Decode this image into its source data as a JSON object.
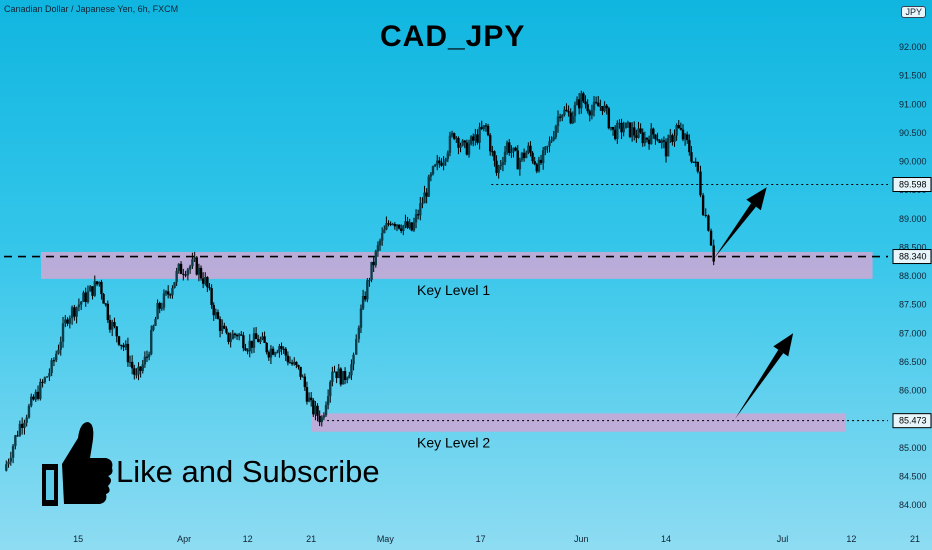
{
  "header": {
    "symbol_info": "Canadian Dollar / Japanese Yen, 6h, FXCM",
    "title": "CAD_JPY",
    "currency_badge": "JPY"
  },
  "cta": {
    "text": "Like and Subscribe"
  },
  "colors": {
    "background_top": "#10b6e0",
    "background_bottom": "#8edcf2",
    "key_level_zone": "#c9a9d6",
    "candles": "#000000",
    "arrows": "#000000"
  },
  "chart_data": {
    "type": "candlestick",
    "title": "CAD_JPY",
    "ylim": [
      84.0,
      92.5
    ],
    "yticks": [
      84.0,
      84.5,
      85.0,
      85.5,
      86.0,
      86.5,
      87.0,
      87.5,
      88.0,
      88.5,
      89.0,
      89.5,
      90.0,
      90.5,
      91.0,
      91.5,
      92.0
    ],
    "ytick_labels": [
      "84.000",
      "84.500",
      "85.000",
      "85.500",
      "86.000",
      "86.500",
      "87.000",
      "87.500",
      "88.000",
      "88.500",
      "89.000",
      "89.500",
      "90.000",
      "90.500",
      "91.000",
      "91.500",
      "92.000"
    ],
    "xticks": [
      {
        "label": "15",
        "t": 14
      },
      {
        "label": "Apr",
        "t": 34
      },
      {
        "label": "12",
        "t": 46
      },
      {
        "label": "21",
        "t": 58
      },
      {
        "label": "May",
        "t": 72
      },
      {
        "label": "17",
        "t": 90
      },
      {
        "label": "Jun",
        "t": 109
      },
      {
        "label": "14",
        "t": 125
      },
      {
        "label": "Jul",
        "t": 147
      },
      {
        "label": "12",
        "t": 160
      },
      {
        "label": "21",
        "t": 172
      }
    ],
    "xlim": [
      0,
      182
    ],
    "price_path": [
      [
        0,
        84.6
      ],
      [
        3,
        85.4
      ],
      [
        6,
        85.9
      ],
      [
        9,
        86.4
      ],
      [
        12,
        87.3
      ],
      [
        15,
        87.6
      ],
      [
        18,
        87.9
      ],
      [
        20,
        87.2
      ],
      [
        23,
        86.7
      ],
      [
        25,
        86.2
      ],
      [
        27,
        86.6
      ],
      [
        29,
        87.4
      ],
      [
        31,
        87.7
      ],
      [
        33,
        88.1
      ],
      [
        36,
        88.2
      ],
      [
        38,
        87.9
      ],
      [
        40,
        87.3
      ],
      [
        42,
        86.9
      ],
      [
        44,
        87.0
      ],
      [
        46,
        86.8
      ],
      [
        48,
        86.9
      ],
      [
        50,
        86.7
      ],
      [
        52,
        86.8
      ],
      [
        54,
        86.5
      ],
      [
        56,
        86.3
      ],
      [
        58,
        85.7
      ],
      [
        60,
        85.5
      ],
      [
        62,
        86.4
      ],
      [
        64,
        86.2
      ],
      [
        66,
        86.5
      ],
      [
        67,
        87.2
      ],
      [
        69,
        88.0
      ],
      [
        71,
        88.6
      ],
      [
        73,
        89.0
      ],
      [
        75,
        88.9
      ],
      [
        77,
        88.8
      ],
      [
        79,
        89.3
      ],
      [
        81,
        89.8
      ],
      [
        83,
        90.1
      ],
      [
        85,
        90.5
      ],
      [
        87,
        90.2
      ],
      [
        89,
        90.4
      ],
      [
        91,
        90.6
      ],
      [
        93,
        89.8
      ],
      [
        95,
        90.3
      ],
      [
        97,
        90.0
      ],
      [
        99,
        90.2
      ],
      [
        101,
        89.9
      ],
      [
        103,
        90.3
      ],
      [
        105,
        90.9
      ],
      [
        107,
        90.8
      ],
      [
        109,
        91.1
      ],
      [
        111,
        90.9
      ],
      [
        113,
        91.0
      ],
      [
        115,
        90.5
      ],
      [
        117,
        90.6
      ],
      [
        119,
        90.5
      ],
      [
        121,
        90.4
      ],
      [
        123,
        90.5
      ],
      [
        125,
        90.2
      ],
      [
        127,
        90.6
      ],
      [
        129,
        90.3
      ],
      [
        131,
        89.8
      ],
      [
        132,
        89.2
      ],
      [
        133,
        88.9
      ],
      [
        134,
        88.34
      ]
    ],
    "key_levels": [
      {
        "label": "Key Level 1",
        "y_from": 87.95,
        "y_to": 88.42,
        "t_from": 7,
        "t_to": 164
      },
      {
        "label": "Key Level 2",
        "y_from": 85.28,
        "y_to": 85.6,
        "t_from": 58,
        "t_to": 159
      }
    ],
    "price_labels": [
      {
        "value": "89.598",
        "y": 89.598,
        "line_from": 92,
        "style": "dotted"
      },
      {
        "value": "88.340",
        "y": 88.34,
        "line_from": 0,
        "style": "dashed"
      },
      {
        "value": "85.473",
        "y": 85.473,
        "line_from": 61,
        "style": "dotted"
      }
    ],
    "arrows": [
      {
        "from": [
          134,
          88.3
        ],
        "to": [
          144,
          89.55
        ]
      },
      {
        "from": [
          138,
          85.5
        ],
        "to": [
          149,
          87.0
        ]
      }
    ]
  }
}
